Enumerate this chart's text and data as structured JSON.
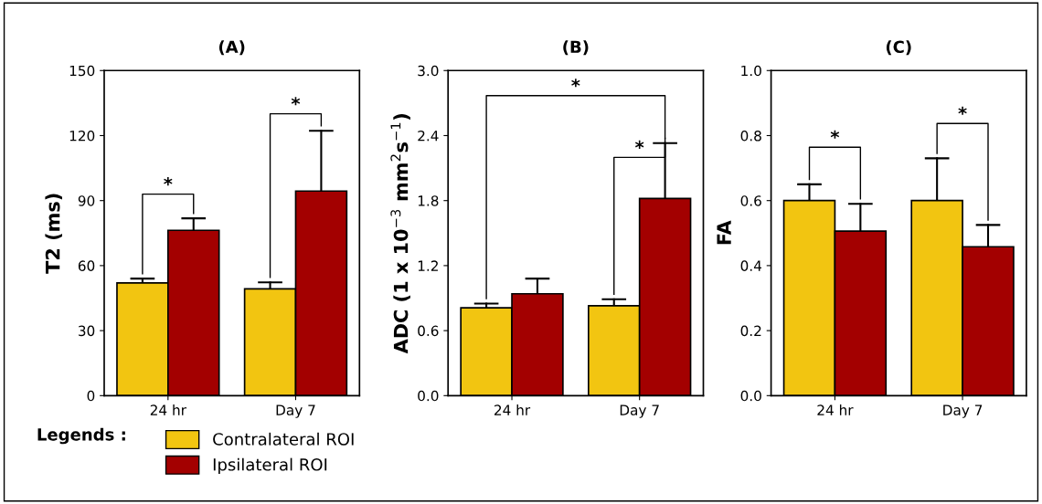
{
  "chart_data": [
    {
      "type": "bar",
      "title": "(A)",
      "ylabel": "T2 (ms)",
      "categories": [
        "24 hr",
        "Day 7"
      ],
      "ylim": [
        0,
        150
      ],
      "yticks": [
        0,
        30,
        60,
        90,
        120,
        150
      ],
      "legend": "bottom",
      "legend_title": "Legends :",
      "grid": false,
      "series": [
        {
          "name": "Contralateral ROI",
          "color": "#f2c511",
          "values": [
            52,
            49.3
          ],
          "errors": [
            [
              52,
              54
            ],
            [
              49.3,
              52.3
            ]
          ]
        },
        {
          "name": "Ipsilateral ROI",
          "color": "#a30000",
          "values": [
            76.3,
            94.4
          ],
          "errors": [
            [
              76.3,
              81.8
            ],
            [
              94.4,
              122.2
            ]
          ]
        }
      ],
      "annotations": [
        "*",
        "*"
      ]
    },
    {
      "type": "bar",
      "title": "(B)",
      "ylabel": "ADC (1 x 10$^{−3}$ mm$^{2}$s$^{−1}$)",
      "categories": [
        "24 hr",
        "Day 7"
      ],
      "ylim": [
        0,
        3.0
      ],
      "yticks": [
        {
          "value": 0,
          "label": "0.0"
        },
        {
          "value": 0.6,
          "label": "0.6"
        },
        {
          "value": 1.2,
          "label": "1.2"
        },
        {
          "value": 1.8,
          "label": "1.8"
        },
        {
          "value": 2.4,
          "label": "2.4"
        },
        {
          "value": 3.0,
          "label": "3.0"
        }
      ],
      "grid": false,
      "series": [
        {
          "color": "#f2c511",
          "values": [
            0.81,
            0.83
          ],
          "errors": [
            [
              0.81,
              0.85
            ],
            [
              0.83,
              0.89
            ]
          ]
        },
        {
          "color": "#a30000",
          "values": [
            0.94,
            1.82
          ],
          "errors": [
            [
              0.94,
              1.08
            ],
            [
              1.82,
              2.33
            ]
          ]
        }
      ],
      "annotations": [
        "*",
        "*"
      ]
    },
    {
      "type": "bar",
      "title": "(C)",
      "ylabel": "FA",
      "categories": [
        "24 hr",
        "Day 7"
      ],
      "ylim": [
        0,
        1.0
      ],
      "yticks": [
        {
          "value": 0,
          "label": "0.0"
        },
        {
          "value": 0.2,
          "label": "0.2"
        },
        {
          "value": 0.4,
          "label": "0.4"
        },
        {
          "value": 0.6,
          "label": "0.6"
        },
        {
          "value": 0.8,
          "label": "0.8"
        },
        {
          "value": 1.0,
          "label": "1.0"
        }
      ],
      "grid": false,
      "series": [
        {
          "color": "#f2c511",
          "values": [
            0.6,
            0.6
          ],
          "errors": [
            [
              0.6,
              0.65
            ],
            [
              0.6,
              0.73
            ]
          ]
        },
        {
          "color": "#a30000",
          "values": [
            0.506,
            0.458
          ],
          "errors": [
            [
              0.506,
              0.59
            ],
            [
              0.458,
              0.525
            ]
          ]
        }
      ],
      "annotations": [
        "*",
        "*"
      ]
    }
  ]
}
